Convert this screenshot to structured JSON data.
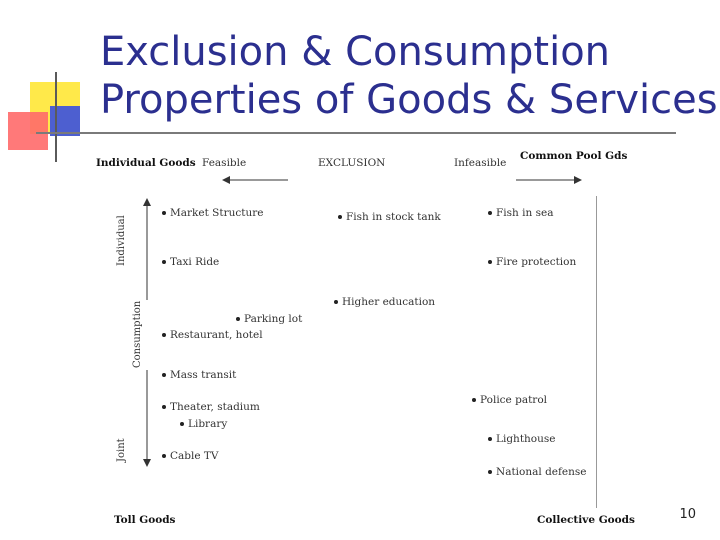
{
  "slide": {
    "title_line1": "Exclusion & Consumption",
    "title_line2": "Properties of Goods & Services",
    "page_number": "10"
  },
  "diagram": {
    "top_left_label": "Individual Goods",
    "top_right_label": "Common Pool Gds",
    "bottom_left_label": "Toll Goods",
    "bottom_right_label": "Collective Goods",
    "x_axis_title": "EXCLUSION",
    "x_axis_left": "Feasible",
    "x_axis_right": "Infeasible",
    "y_axis_title": "Consumption",
    "y_axis_top": "Individual",
    "y_axis_bottom": "Joint",
    "items": [
      "Market Structure",
      "Fish in stock tank",
      "Fish in sea",
      "Taxi Ride",
      "Fire protection",
      "Higher education",
      "Parking lot",
      "Restaurant, hotel",
      "Mass transit",
      "Police patrol",
      "Theater, stadium",
      "Library",
      "Lighthouse",
      "Cable TV",
      "National defense"
    ]
  }
}
